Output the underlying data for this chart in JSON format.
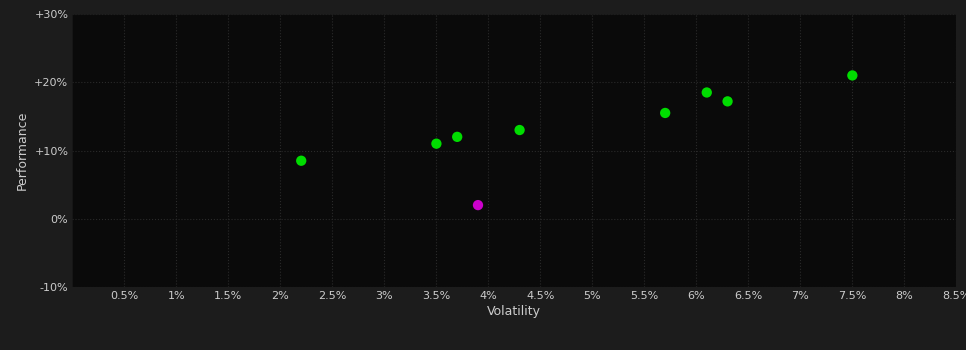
{
  "background_color": "#1c1c1c",
  "plot_bg_color": "#0a0a0a",
  "grid_color": "#2a2a2a",
  "title": "",
  "xlabel": "Volatility",
  "ylabel": "Performance",
  "xlim": [
    0.0,
    0.085
  ],
  "ylim": [
    -0.1,
    0.3
  ],
  "xticks": [
    0.005,
    0.01,
    0.015,
    0.02,
    0.025,
    0.03,
    0.035,
    0.04,
    0.045,
    0.05,
    0.055,
    0.06,
    0.065,
    0.07,
    0.075,
    0.08,
    0.085
  ],
  "xtick_labels": [
    "0.5%",
    "1%",
    "1.5%",
    "2%",
    "2.5%",
    "3%",
    "3.5%",
    "4%",
    "4.5%",
    "5%",
    "5.5%",
    "6%",
    "6.5%",
    "7%",
    "7.5%",
    "8%",
    "8.5%"
  ],
  "yticks": [
    -0.1,
    0.0,
    0.1,
    0.2,
    0.3
  ],
  "ytick_labels": [
    "-10%",
    "0%",
    "+10%",
    "+20%",
    "+30%"
  ],
  "green_points": [
    [
      0.022,
      0.085
    ],
    [
      0.035,
      0.11
    ],
    [
      0.037,
      0.12
    ],
    [
      0.043,
      0.13
    ],
    [
      0.057,
      0.155
    ],
    [
      0.061,
      0.185
    ],
    [
      0.063,
      0.172
    ],
    [
      0.075,
      0.21
    ]
  ],
  "magenta_points": [
    [
      0.039,
      0.02
    ]
  ],
  "green_color": "#00dd00",
  "magenta_color": "#cc00cc",
  "marker_size": 55,
  "tick_color": "#cccccc",
  "tick_fontsize": 8,
  "label_fontsize": 9,
  "label_color": "#cccccc"
}
